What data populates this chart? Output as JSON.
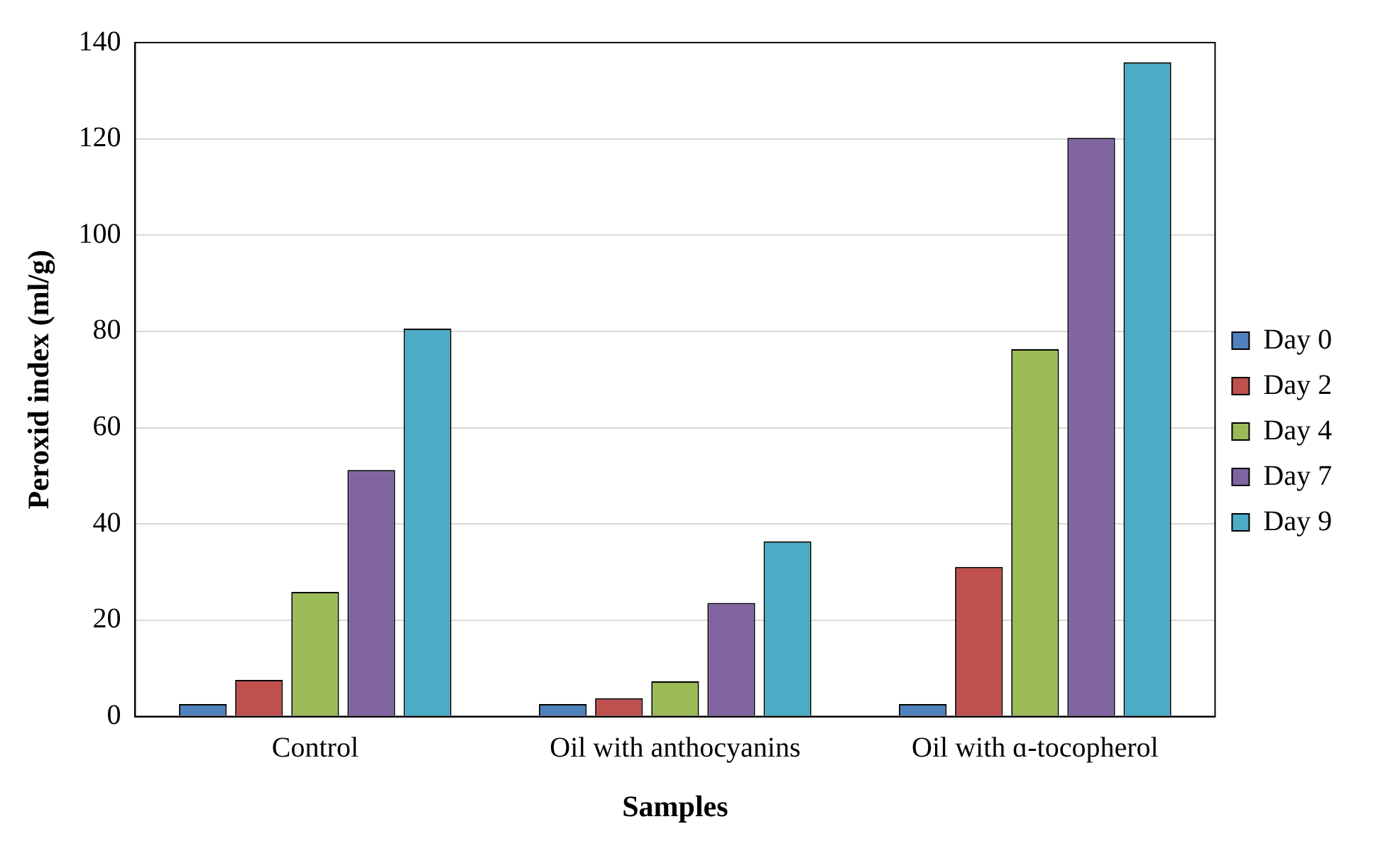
{
  "chart_data": {
    "type": "bar",
    "xlabel": "Samples",
    "ylabel": "Peroxid index (ml/g)",
    "categories": [
      "Control",
      "Oil with anthocyanins",
      "Oil with ɑ-tocopherol"
    ],
    "series": [
      {
        "name": "Day 0",
        "color": "#4f81bd",
        "values": [
          2.6,
          2.6,
          2.6
        ]
      },
      {
        "name": "Day 2",
        "color": "#c0504d",
        "values": [
          7.6,
          3.8,
          31.1
        ]
      },
      {
        "name": "Day 4",
        "color": "#9bbb59",
        "values": [
          25.9,
          7.3,
          76.3
        ]
      },
      {
        "name": "Day 7",
        "color": "#8064a2",
        "values": [
          51.2,
          23.6,
          120.2
        ]
      },
      {
        "name": "Day 9",
        "color": "#4bacc6",
        "values": [
          80.6,
          36.4,
          135.9
        ]
      }
    ],
    "ylim": [
      0,
      140
    ],
    "yticks": [
      0,
      20,
      40,
      60,
      80,
      100,
      120,
      140
    ],
    "grid": "y",
    "legend": "right"
  }
}
